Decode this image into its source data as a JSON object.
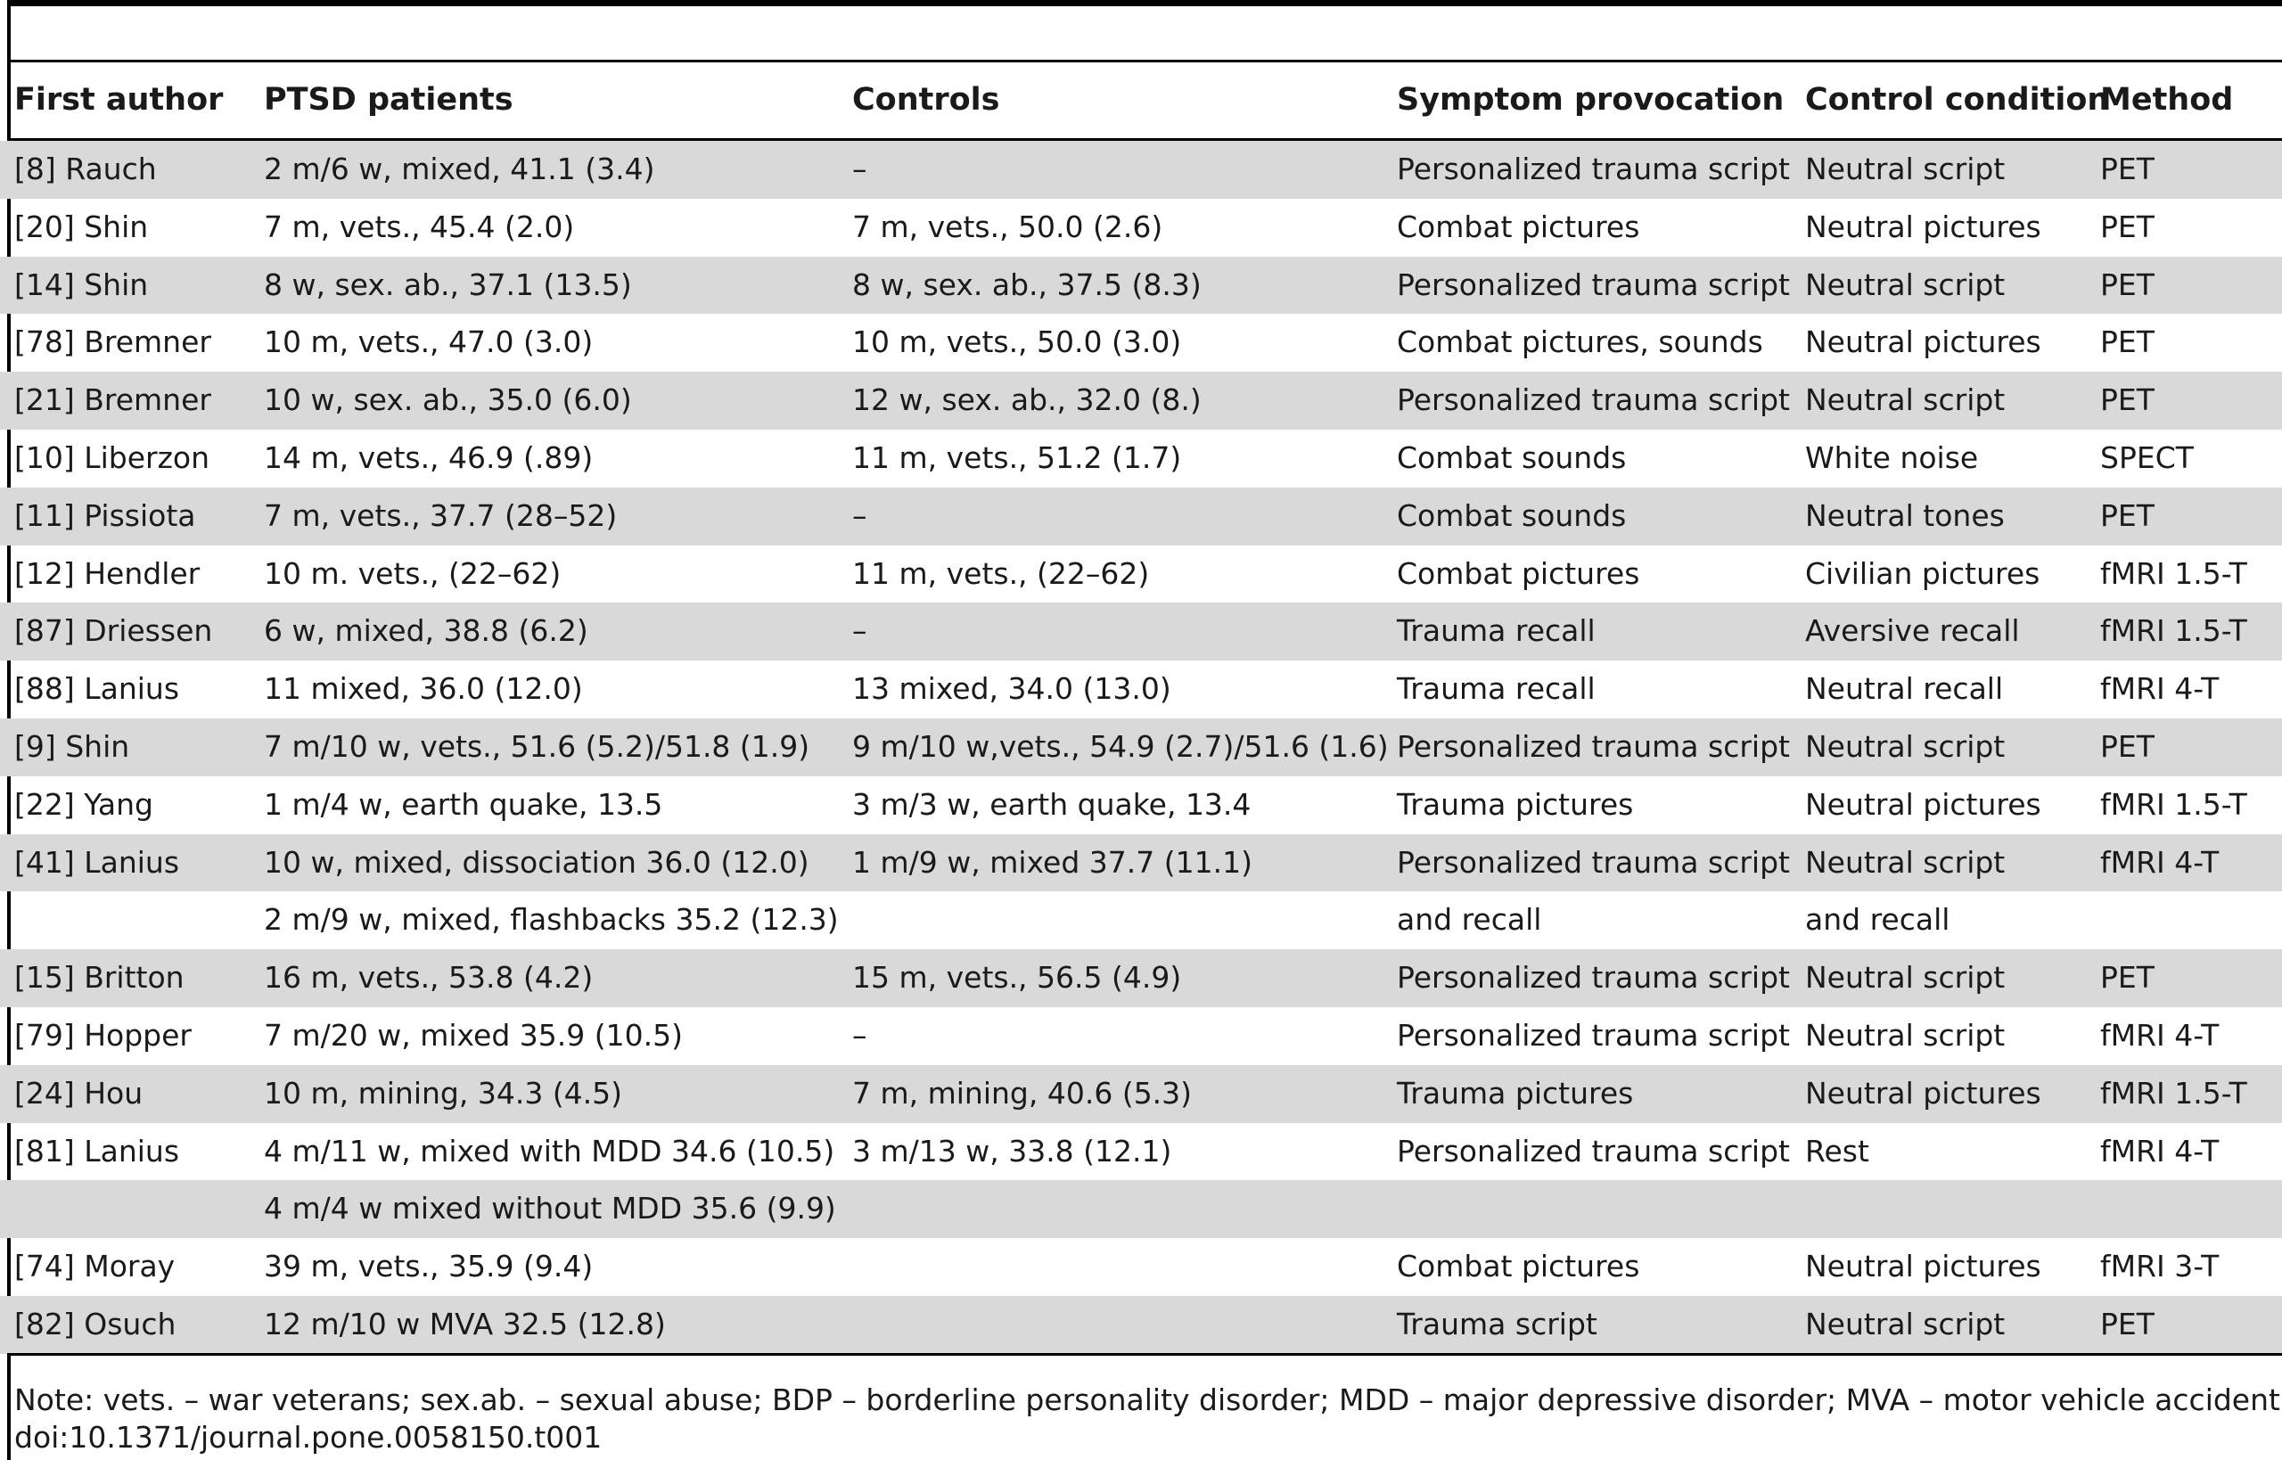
{
  "columns": [
    "First author",
    "PTSD patients",
    "Controls",
    "Symptom provocation",
    "Control condition",
    "Method"
  ],
  "rows": [
    {
      "author": "[8] Rauch",
      "patients": "2 m/6 w, mixed, 41.1 (3.4)",
      "controls": "–",
      "provocation": "Personalized trauma script",
      "control_condition": "Neutral script",
      "method": "PET",
      "shaded": true
    },
    {
      "author": "[20] Shin",
      "patients": "7 m, vets., 45.4 (2.0)",
      "controls": "7 m, vets., 50.0 (2.6)",
      "provocation": "Combat pictures",
      "control_condition": "Neutral pictures",
      "method": "PET",
      "shaded": false
    },
    {
      "author": "[14] Shin",
      "patients": "8 w, sex. ab., 37.1 (13.5)",
      "controls": "8 w, sex. ab., 37.5 (8.3)",
      "provocation": "Personalized trauma script",
      "control_condition": "Neutral script",
      "method": "PET",
      "shaded": true
    },
    {
      "author": "[78] Bremner",
      "patients": "10 m, vets., 47.0 (3.0)",
      "controls": "10 m, vets., 50.0 (3.0)",
      "provocation": "Combat pictures, sounds",
      "control_condition": "Neutral pictures",
      "method": "PET",
      "shaded": false
    },
    {
      "author": "[21] Bremner",
      "patients": "10 w, sex. ab., 35.0 (6.0)",
      "controls": "12 w, sex. ab., 32.0 (8.)",
      "provocation": "Personalized trauma script",
      "control_condition": "Neutral script",
      "method": "PET",
      "shaded": true
    },
    {
      "author": "[10] Liberzon",
      "patients": "14 m, vets., 46.9 (.89)",
      "controls": "11 m, vets., 51.2 (1.7)",
      "provocation": "Combat sounds",
      "control_condition": "White noise",
      "method": "SPECT",
      "shaded": false
    },
    {
      "author": "[11] Pissiota",
      "patients": "7 m, vets., 37.7 (28–52)",
      "controls": "–",
      "provocation": "Combat sounds",
      "control_condition": "Neutral tones",
      "method": "PET",
      "shaded": true
    },
    {
      "author": "[12] Hendler",
      "patients": "10 m. vets., (22–62)",
      "controls": "11 m, vets., (22–62)",
      "provocation": "Combat pictures",
      "control_condition": "Civilian pictures",
      "method": "fMRI 1.5-T",
      "shaded": false
    },
    {
      "author": "[87] Driessen",
      "patients": "6 w, mixed, 38.8 (6.2)",
      "controls": "–",
      "provocation": "Trauma recall",
      "control_condition": "Aversive recall",
      "method": "fMRI 1.5-T",
      "shaded": true
    },
    {
      "author": "[88] Lanius",
      "patients": "11 mixed, 36.0 (12.0)",
      "controls": "13 mixed, 34.0 (13.0)",
      "provocation": "Trauma recall",
      "control_condition": "Neutral recall",
      "method": "fMRI 4-T",
      "shaded": false
    },
    {
      "author": "[9] Shin",
      "patients": "7 m/10 w, vets., 51.6 (5.2)/51.8 (1.9)",
      "controls": "9 m/10 w,vets., 54.9 (2.7)/51.6 (1.6)",
      "provocation": "Personalized trauma script",
      "control_condition": "Neutral script",
      "method": "PET",
      "shaded": true
    },
    {
      "author": "[22] Yang",
      "patients": "1 m/4 w, earth quake, 13.5",
      "controls": "3 m/3 w, earth quake, 13.4",
      "provocation": "Trauma pictures",
      "control_condition": "Neutral pictures",
      "method": "fMRI 1.5-T",
      "shaded": false
    },
    {
      "author": "[41] Lanius",
      "patients": "10 w, mixed, dissociation 36.0 (12.0)",
      "controls": "1 m/9 w, mixed 37.7 (11.1)",
      "provocation": "Personalized trauma script",
      "control_condition": "Neutral script",
      "method": "fMRI 4-T",
      "shaded": true
    },
    {
      "author": "",
      "patients": "2 m/9 w, mixed, flashbacks 35.2 (12.3)",
      "controls": "",
      "provocation": "and recall",
      "control_condition": "and recall",
      "method": "",
      "shaded": false
    },
    {
      "author": "[15] Britton",
      "patients": "16 m, vets., 53.8 (4.2)",
      "controls": "15 m, vets., 56.5 (4.9)",
      "provocation": "Personalized trauma script",
      "control_condition": "Neutral script",
      "method": "PET",
      "shaded": true
    },
    {
      "author": "[79] Hopper",
      "patients": "7 m/20 w, mixed 35.9 (10.5)",
      "controls": "–",
      "provocation": "Personalized trauma script",
      "control_condition": "Neutral script",
      "method": "fMRI 4-T",
      "shaded": false
    },
    {
      "author": "[24] Hou",
      "patients": "10 m, mining, 34.3 (4.5)",
      "controls": "7 m, mining, 40.6 (5.3)",
      "provocation": "Trauma pictures",
      "control_condition": "Neutral pictures",
      "method": "fMRI 1.5-T",
      "shaded": true
    },
    {
      "author": "[81] Lanius",
      "patients": "4 m/11 w, mixed with MDD 34.6 (10.5)",
      "controls": "3 m/13 w, 33.8 (12.1)",
      "provocation": "Personalized trauma script",
      "control_condition": "Rest",
      "method": "fMRI 4-T",
      "shaded": false
    },
    {
      "author": "",
      "patients": "4 m/4 w mixed without MDD 35.6 (9.9)",
      "controls": "",
      "provocation": "",
      "control_condition": "",
      "method": "",
      "shaded": true
    },
    {
      "author": "[74] Moray",
      "patients": "39 m, vets., 35.9 (9.4)",
      "controls": "",
      "provocation": "Combat pictures",
      "control_condition": "Neutral pictures",
      "method": "fMRI 3-T",
      "shaded": false
    },
    {
      "author": "[82] Osuch",
      "patients": "12 m/10 w MVA 32.5 (12.8)",
      "controls": "",
      "provocation": "Trauma script",
      "control_condition": "Neutral script",
      "method": "PET",
      "shaded": true
    }
  ],
  "note": "Note: vets. – war veterans; sex.ab. – sexual abuse; BDP – borderline personality disorder; MDD – major depressive disorder; MVA – motor vehicle accident.",
  "doi": "doi:10.1371/journal.pone.0058150.t001"
}
